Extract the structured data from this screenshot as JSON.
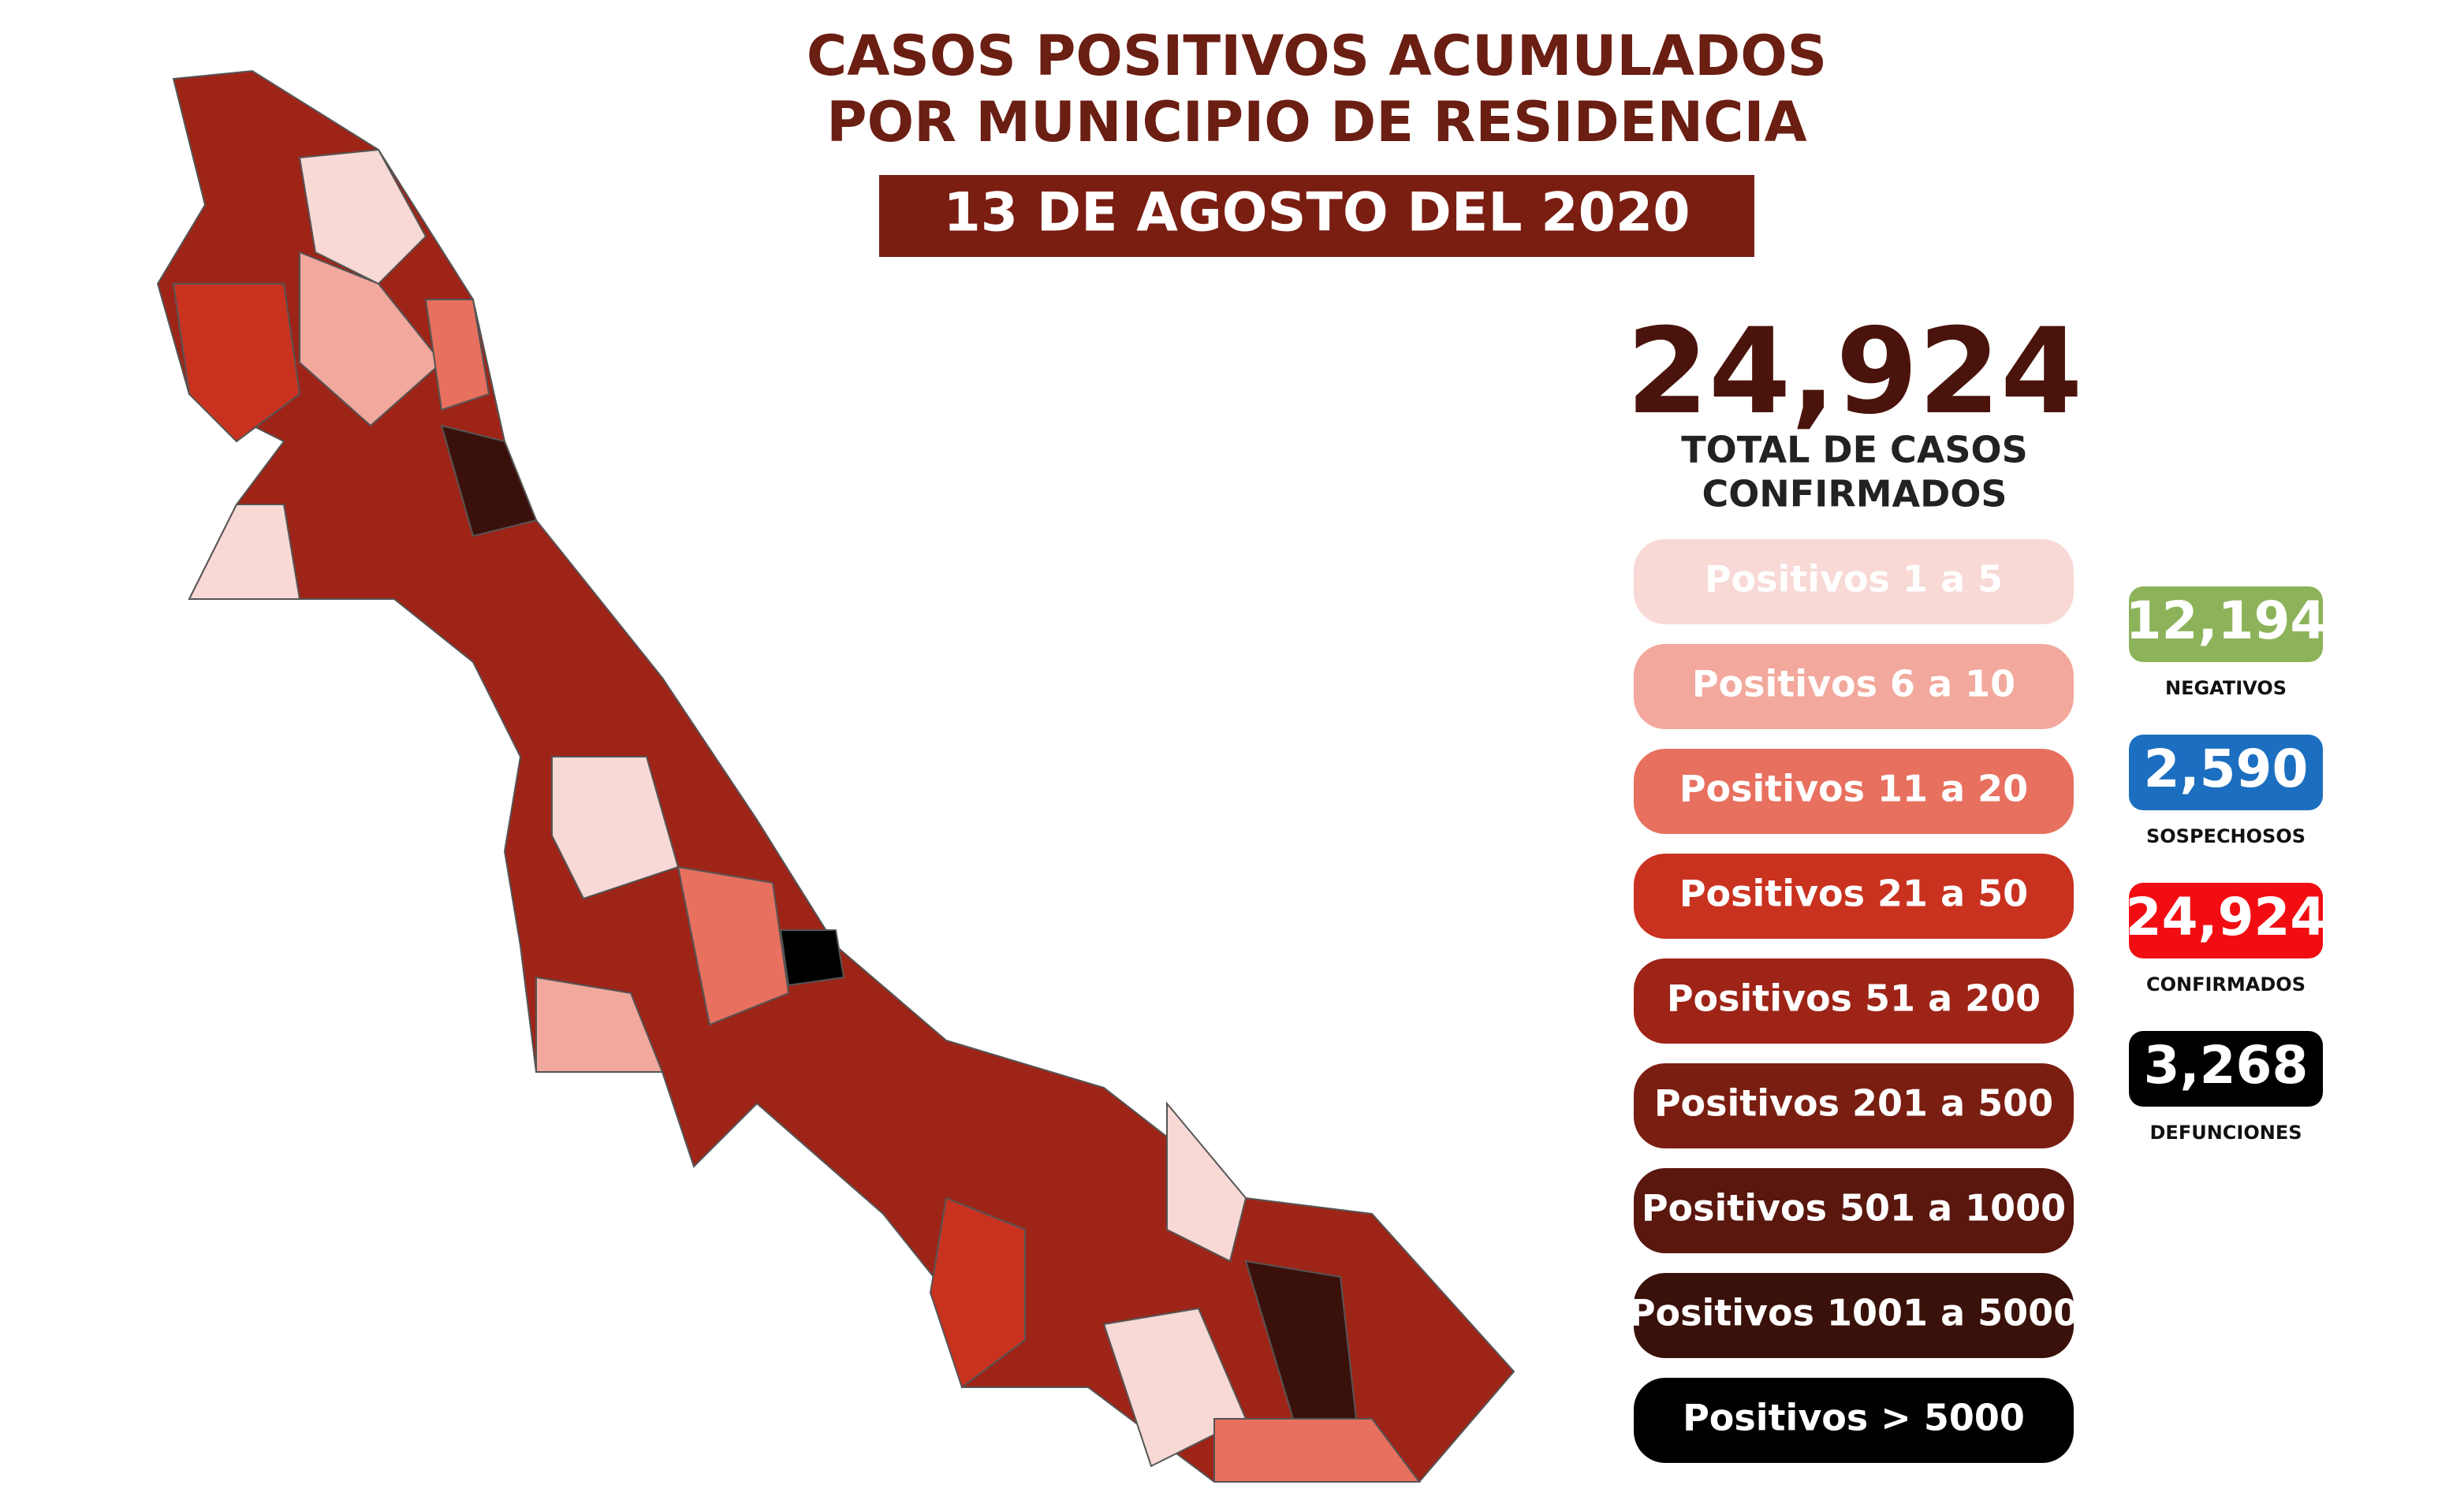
{
  "header": {
    "title": [
      "CASOS POSITIVOS ACUMULADOS",
      "POR MUNICIPIO DE RESIDENCIA"
    ],
    "date": "13 DE AGOSTO DEL 2020"
  },
  "total": {
    "value": "24,924",
    "label": [
      "TOTAL DE CASOS",
      "CONFIRMADOS"
    ]
  },
  "legend": [
    {
      "label": "Positivos 1 a 5",
      "color": "#f8d9d5"
    },
    {
      "label": "Positivos 6 a 10",
      "color": "#f2a89c"
    },
    {
      "label": "Positivos 11 a 20",
      "color": "#e8705f"
    },
    {
      "label": "Positivos 21 a 50",
      "color": "#c9321f"
    },
    {
      "label": "Positivos 51 a 200",
      "color": "#9e2418"
    },
    {
      "label": "Positivos 201 a 500",
      "color": "#7a1e12"
    },
    {
      "label": "Positivos 501 a 1000",
      "color": "#5a170e"
    },
    {
      "label": "Positivos 1001 a 5000",
      "color": "#3a110a"
    },
    {
      "label": "Positivos > 5000",
      "color": "#000000"
    }
  ],
  "stats": [
    {
      "value": "12,194",
      "label": "NEGATIVOS",
      "color": "#8db35a"
    },
    {
      "value": "2,590",
      "label": "SOSPECHOSOS",
      "color": "#1c6fc0"
    },
    {
      "value": "24,924",
      "label": "CONFIRMADOS",
      "color": "#f20d12"
    },
    {
      "value": "3,268",
      "label": "DEFUNCIONES",
      "color": "#000000"
    }
  ]
}
